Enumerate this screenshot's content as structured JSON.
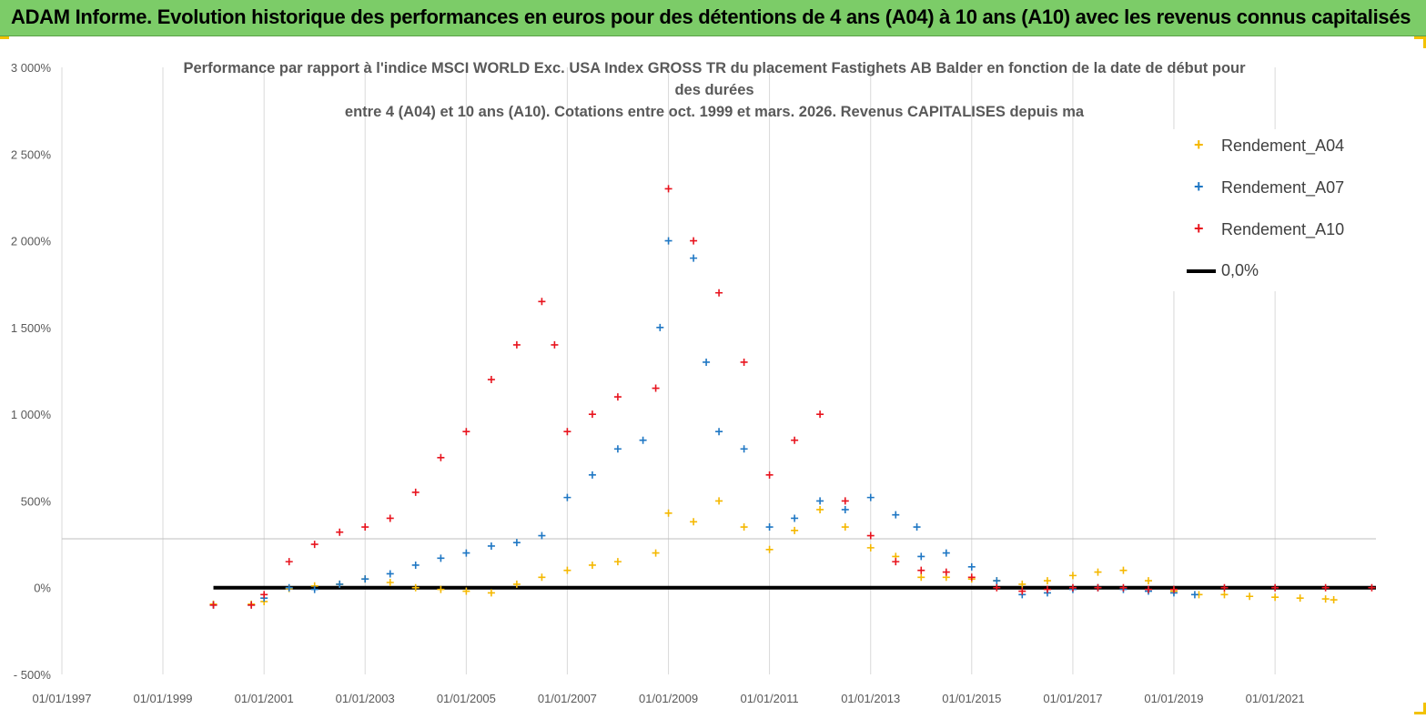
{
  "header": {
    "title": "ADAM Informe. Evolution historique des performances en euros pour des détentions de 4 ans (A04) à 10 ans (A10) avec les revenus connus capitalisés"
  },
  "chart_data": {
    "type": "scatter",
    "title_lines": [
      "Performance par rapport à l'indice MSCI WORLD Exc. USA Index GROSS TR  du placement Fastighets AB Balder en fonction de la date de début pour",
      "des durées",
      "entre 4 (A04) et 10 ans (A10). Cotations entre oct. 1999 et mars. 2026. Revenus CAPITALISES depuis ma"
    ],
    "xlabel": "",
    "ylabel": "",
    "x_range": [
      "1997-01-01",
      "2022-12-31"
    ],
    "ylim": [
      -500,
      3000
    ],
    "y_ticks": [
      -500,
      0,
      500,
      1000,
      1500,
      2000,
      2500,
      3000
    ],
    "y_tick_labels": [
      "- 500%",
      "0%",
      "500%",
      "1 000%",
      "1 500%",
      "2 000%",
      "2 500%",
      "3 000%"
    ],
    "x_tick_labels": [
      "01/01/1997",
      "01/01/1999",
      "01/01/2001",
      "01/01/2003",
      "01/01/2005",
      "01/01/2007",
      "01/01/2009",
      "01/01/2011",
      "01/01/2013",
      "01/01/2015",
      "01/01/2017",
      "01/01/2019",
      "01/01/2021"
    ],
    "grid": "vertical",
    "legend_position": "top-right",
    "series": [
      {
        "name": "Rendement_A04",
        "color": "#f5b800",
        "marker": "+",
        "points": [
          [
            "2000-01-01",
            -95
          ],
          [
            "2000-10-01",
            -95
          ],
          [
            "2001-01-01",
            -80
          ],
          [
            "2001-07-01",
            -5
          ],
          [
            "2002-01-01",
            10
          ],
          [
            "2002-07-01",
            20
          ],
          [
            "2003-01-01",
            50
          ],
          [
            "2003-07-01",
            30
          ],
          [
            "2004-01-01",
            0
          ],
          [
            "2004-07-01",
            -10
          ],
          [
            "2005-01-01",
            -20
          ],
          [
            "2005-07-01",
            -30
          ],
          [
            "2006-01-01",
            20
          ],
          [
            "2006-07-01",
            60
          ],
          [
            "2007-01-01",
            100
          ],
          [
            "2007-07-01",
            130
          ],
          [
            "2008-01-01",
            150
          ],
          [
            "2008-10-01",
            200
          ],
          [
            "2009-01-01",
            430
          ],
          [
            "2009-07-01",
            380
          ],
          [
            "2010-01-01",
            500
          ],
          [
            "2010-07-01",
            350
          ],
          [
            "2011-01-01",
            220
          ],
          [
            "2011-07-01",
            330
          ],
          [
            "2012-01-01",
            450
          ],
          [
            "2012-07-01",
            350
          ],
          [
            "2013-01-01",
            230
          ],
          [
            "2013-07-01",
            180
          ],
          [
            "2014-01-01",
            60
          ],
          [
            "2014-07-01",
            60
          ],
          [
            "2015-01-01",
            50
          ],
          [
            "2015-07-01",
            40
          ],
          [
            "2016-01-01",
            20
          ],
          [
            "2016-07-01",
            40
          ],
          [
            "2017-01-01",
            70
          ],
          [
            "2017-07-01",
            90
          ],
          [
            "2018-01-01",
            100
          ],
          [
            "2018-07-01",
            40
          ],
          [
            "2019-01-01",
            -20
          ],
          [
            "2019-07-01",
            -40
          ],
          [
            "2020-01-01",
            -40
          ],
          [
            "2020-07-01",
            -50
          ],
          [
            "2021-01-01",
            -55
          ],
          [
            "2021-07-01",
            -60
          ],
          [
            "2022-01-01",
            -65
          ],
          [
            "2022-03-01",
            -70
          ]
        ]
      },
      {
        "name": "Rendement_A07",
        "color": "#1f77c4",
        "marker": "+",
        "points": [
          [
            "2000-01-01",
            -100
          ],
          [
            "2000-10-01",
            -100
          ],
          [
            "2001-01-01",
            -60
          ],
          [
            "2001-07-01",
            0
          ],
          [
            "2002-01-01",
            -10
          ],
          [
            "2002-07-01",
            20
          ],
          [
            "2003-01-01",
            50
          ],
          [
            "2003-07-01",
            80
          ],
          [
            "2004-01-01",
            130
          ],
          [
            "2004-07-01",
            170
          ],
          [
            "2005-01-01",
            200
          ],
          [
            "2005-07-01",
            240
          ],
          [
            "2006-01-01",
            260
          ],
          [
            "2006-07-01",
            300
          ],
          [
            "2007-01-01",
            520
          ],
          [
            "2007-07-01",
            650
          ],
          [
            "2008-01-01",
            800
          ],
          [
            "2008-07-01",
            850
          ],
          [
            "2008-11-01",
            1500
          ],
          [
            "2009-01-01",
            2000
          ],
          [
            "2009-07-01",
            1900
          ],
          [
            "2009-10-01",
            1300
          ],
          [
            "2010-01-01",
            900
          ],
          [
            "2010-07-01",
            800
          ],
          [
            "2011-01-01",
            350
          ],
          [
            "2011-07-01",
            400
          ],
          [
            "2012-01-01",
            500
          ],
          [
            "2012-07-01",
            450
          ],
          [
            "2013-01-01",
            520
          ],
          [
            "2013-07-01",
            420
          ],
          [
            "2013-12-01",
            350
          ],
          [
            "2014-01-01",
            180
          ],
          [
            "2014-07-01",
            200
          ],
          [
            "2015-01-01",
            120
          ],
          [
            "2015-07-01",
            40
          ],
          [
            "2016-01-01",
            -40
          ],
          [
            "2016-07-01",
            -30
          ],
          [
            "2017-01-01",
            -10
          ],
          [
            "2017-07-01",
            0
          ],
          [
            "2018-01-01",
            -10
          ],
          [
            "2018-07-01",
            -20
          ],
          [
            "2019-01-01",
            -30
          ],
          [
            "2019-06-01",
            -40
          ]
        ]
      },
      {
        "name": "Rendement_A10",
        "color": "#e8141e",
        "marker": "+",
        "points": [
          [
            "2000-01-01",
            -100
          ],
          [
            "2000-10-01",
            -100
          ],
          [
            "2001-01-01",
            -40
          ],
          [
            "2001-07-01",
            150
          ],
          [
            "2002-01-01",
            250
          ],
          [
            "2002-07-01",
            320
          ],
          [
            "2003-01-01",
            350
          ],
          [
            "2003-07-01",
            400
          ],
          [
            "2004-01-01",
            550
          ],
          [
            "2004-07-01",
            750
          ],
          [
            "2005-01-01",
            900
          ],
          [
            "2005-07-01",
            1200
          ],
          [
            "2006-01-01",
            1400
          ],
          [
            "2006-07-01",
            1650
          ],
          [
            "2006-10-01",
            1400
          ],
          [
            "2007-01-01",
            900
          ],
          [
            "2007-07-01",
            1000
          ],
          [
            "2008-01-01",
            1100
          ],
          [
            "2008-10-01",
            1150
          ],
          [
            "2009-01-01",
            2300
          ],
          [
            "2009-07-01",
            2000
          ],
          [
            "2010-01-01",
            1700
          ],
          [
            "2010-07-01",
            1300
          ],
          [
            "2011-01-01",
            650
          ],
          [
            "2011-07-01",
            850
          ],
          [
            "2012-01-01",
            1000
          ],
          [
            "2012-07-01",
            500
          ],
          [
            "2013-01-01",
            300
          ],
          [
            "2013-07-01",
            150
          ],
          [
            "2014-01-01",
            100
          ],
          [
            "2014-07-01",
            90
          ],
          [
            "2015-01-01",
            60
          ],
          [
            "2015-07-01",
            0
          ],
          [
            "2016-01-01",
            -20
          ],
          [
            "2016-07-01",
            -10
          ],
          [
            "2017-01-01",
            0
          ],
          [
            "2017-07-01",
            0
          ],
          [
            "2018-01-01",
            0
          ],
          [
            "2018-07-01",
            -10
          ],
          [
            "2019-01-01",
            -10
          ],
          [
            "2020-01-01",
            0
          ],
          [
            "2021-01-01",
            0
          ],
          [
            "2022-01-01",
            0
          ],
          [
            "2022-12-01",
            0
          ]
        ]
      },
      {
        "name": "0,0%",
        "color": "#000000",
        "marker": "line",
        "points": [
          [
            "2000-01-01",
            0
          ],
          [
            "2022-12-31",
            0
          ]
        ]
      }
    ]
  }
}
